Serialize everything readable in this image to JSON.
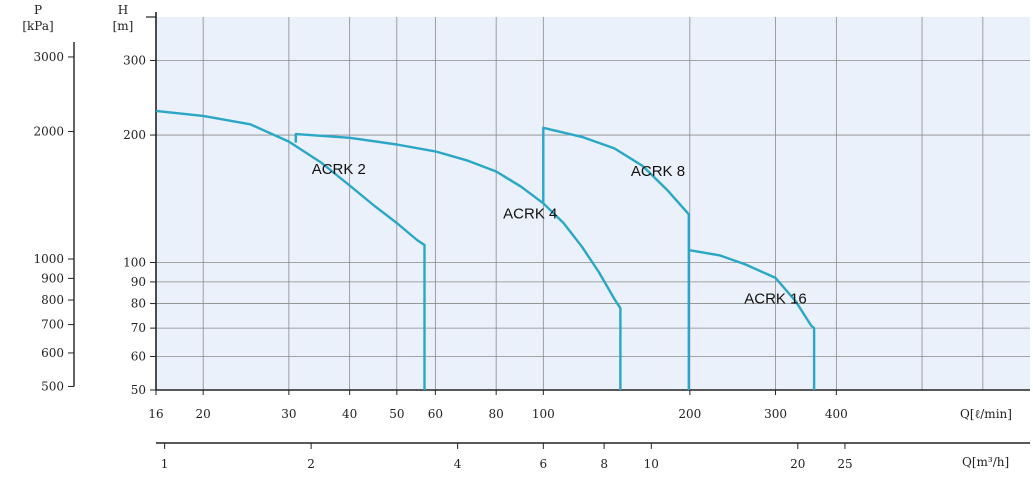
{
  "chart_data": {
    "type": "line",
    "x_scale": "log",
    "y_scale": "log",
    "plot_background": "#eaf1fb",
    "grid": true,
    "curve_color": "#2aa7c6",
    "axes": {
      "pressure": {
        "label_line1": "P",
        "label_line2": "[kPa]",
        "ticks": [
          "3000",
          "2000",
          "1000",
          "900",
          "800",
          "700",
          "600",
          "500"
        ]
      },
      "head": {
        "label_line1": "H",
        "label_line2": "[m]",
        "ticks": [
          "300",
          "200",
          "100",
          "90",
          "80",
          "70",
          "60",
          "50"
        ],
        "ylim": [
          50,
          380
        ]
      },
      "flow_lpm": {
        "label": "Q[ℓ/min]",
        "ticks": [
          "16",
          "20",
          "30",
          "40",
          "50",
          "60",
          "80",
          "100",
          "200",
          "300",
          "400"
        ],
        "xlim": [
          16,
          1000
        ]
      },
      "flow_m3h": {
        "label": "Q[m³/h]",
        "ticks": [
          "1",
          "2",
          "4",
          "6",
          "8",
          "10",
          "20",
          "25"
        ]
      }
    },
    "series": [
      {
        "name": "ACRK 2",
        "points": [
          [
            16,
            228
          ],
          [
            20,
            222
          ],
          [
            25,
            212
          ],
          [
            30,
            193
          ],
          [
            35,
            172
          ],
          [
            40,
            152
          ],
          [
            45,
            136
          ],
          [
            50,
            124
          ],
          [
            55,
            113
          ],
          [
            57,
            110
          ],
          [
            57,
            50
          ]
        ]
      },
      {
        "name": "ACRK 4",
        "points": [
          [
            31,
            192
          ],
          [
            31,
            201
          ],
          [
            40,
            197
          ],
          [
            50,
            190
          ],
          [
            60,
            183
          ],
          [
            70,
            174
          ],
          [
            80,
            164
          ],
          [
            90,
            151
          ],
          [
            100,
            138
          ],
          [
            110,
            124
          ],
          [
            120,
            109
          ],
          [
            130,
            95
          ],
          [
            140,
            82
          ],
          [
            144,
            78
          ],
          [
            144,
            50
          ]
        ]
      },
      {
        "name": "ACRK 8",
        "points": [
          [
            100,
            138
          ],
          [
            100,
            208
          ],
          [
            120,
            198
          ],
          [
            140,
            186
          ],
          [
            160,
            169
          ],
          [
            180,
            148
          ],
          [
            199,
            130
          ],
          [
            199,
            50
          ]
        ]
      },
      {
        "name": "ACRK 16",
        "points": [
          [
            199,
            107
          ],
          [
            230,
            104
          ],
          [
            260,
            99
          ],
          [
            300,
            92
          ],
          [
            330,
            81
          ],
          [
            355,
            71
          ],
          [
            360,
            70
          ],
          [
            360,
            50
          ]
        ]
      }
    ]
  }
}
